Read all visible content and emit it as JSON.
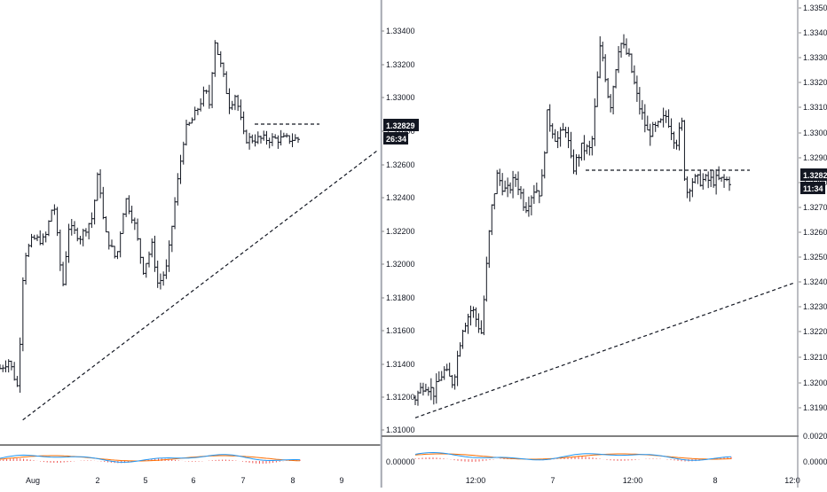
{
  "chart_data": [
    {
      "type": "ohlc",
      "title": "",
      "price_axis": {
        "ylim": [
          1.3085,
          1.3448
        ],
        "ticks": [
          "1.31000",
          "1.31200",
          "1.31400",
          "1.31600",
          "1.31800",
          "1.32000",
          "1.32200",
          "1.32400",
          "1.32600",
          "1.32800",
          "1.33000",
          "1.33200",
          "1.33400"
        ]
      },
      "time_axis": {
        "labels": [
          "Aug",
          "2",
          "5",
          "6",
          "7",
          "8",
          "9"
        ]
      },
      "last_price": "1.32829",
      "countdown": "26:34",
      "series": [
        {
          "name": "",
          "close_path": [
            [
              0.0,
              1.3137
            ],
            [
              0.03,
              1.3142
            ],
            [
              0.06,
              1.3125
            ],
            [
              0.08,
              1.3204
            ],
            [
              0.11,
              1.3215
            ],
            [
              0.15,
              1.3214
            ],
            [
              0.18,
              1.3238
            ],
            [
              0.21,
              1.3185
            ],
            [
              0.23,
              1.3222
            ],
            [
              0.27,
              1.3216
            ],
            [
              0.31,
              1.3228
            ],
            [
              0.33,
              1.3256
            ],
            [
              0.35,
              1.322
            ],
            [
              0.39,
              1.3202
            ],
            [
              0.42,
              1.324
            ],
            [
              0.45,
              1.3225
            ],
            [
              0.48,
              1.3196
            ],
            [
              0.51,
              1.3211
            ],
            [
              0.53,
              1.3187
            ],
            [
              0.56,
              1.3198
            ],
            [
              0.59,
              1.3242
            ],
            [
              0.62,
              1.328
            ],
            [
              0.64,
              1.3285
            ],
            [
              0.66,
              1.3292
            ],
            [
              0.69,
              1.3305
            ],
            [
              0.7,
              1.3292
            ],
            [
              0.72,
              1.3335
            ],
            [
              0.75,
              1.3312
            ],
            [
              0.77,
              1.3295
            ],
            [
              0.79,
              1.3302
            ],
            [
              0.82,
              1.3275
            ]
          ]
        }
      ],
      "levels": [
        {
          "value": 1.32829
        }
      ],
      "trendline": [
        [
          0.06,
          1.3106
        ],
        [
          1.0,
          1.3268
        ]
      ]
    },
    {
      "type": "ohlc",
      "title": "",
      "price_axis": {
        "ylim": [
          1.318,
          1.3505
        ],
        "ticks": [
          "1.31900",
          "1.32000",
          "1.32100",
          "1.32200",
          "1.32300",
          "1.32400",
          "1.32500",
          "1.32600",
          "1.32700",
          "1.32800",
          "1.32900",
          "1.33000",
          "1.33100",
          "1.33200",
          "1.33300",
          "1.33400",
          "1.33500"
        ]
      },
      "time_axis": {
        "labels": [
          "12:00",
          "7",
          "12:00",
          "8",
          "12:0"
        ]
      },
      "last_price": "1.32828",
      "countdown": "11:34",
      "series": [
        {
          "name": "",
          "close_path": [
            [
              0.0,
              1.3194
            ],
            [
              0.03,
              1.32
            ],
            [
              0.06,
              1.3196
            ],
            [
              0.09,
              1.3205
            ],
            [
              0.12,
              1.32
            ],
            [
              0.15,
              1.3222
            ],
            [
              0.18,
              1.323
            ],
            [
              0.21,
              1.322
            ],
            [
              0.24,
              1.3267
            ],
            [
              0.26,
              1.3283
            ],
            [
              0.29,
              1.3276
            ],
            [
              0.32,
              1.3282
            ],
            [
              0.35,
              1.327
            ],
            [
              0.38,
              1.3278
            ],
            [
              0.4,
              1.3276
            ],
            [
              0.42,
              1.3307
            ],
            [
              0.45,
              1.3297
            ],
            [
              0.48,
              1.3302
            ],
            [
              0.5,
              1.3285
            ],
            [
              0.53,
              1.3294
            ],
            [
              0.56,
              1.3293
            ],
            [
              0.59,
              1.3336
            ],
            [
              0.62,
              1.331
            ],
            [
              0.65,
              1.3337
            ],
            [
              0.68,
              1.333
            ],
            [
              0.71,
              1.3312
            ],
            [
              0.74,
              1.33
            ],
            [
              0.77,
              1.3302
            ],
            [
              0.8,
              1.3307
            ],
            [
              0.83,
              1.3296
            ],
            [
              0.85,
              1.3304
            ],
            [
              0.86,
              1.3275
            ],
            [
              0.88,
              1.3281
            ]
          ]
        }
      ],
      "levels": [
        {
          "value": 1.32828
        }
      ],
      "trendline": [
        [
          0.0,
          1.3186
        ],
        [
          1.0,
          1.324
        ]
      ]
    }
  ],
  "indicator_axes": [
    {
      "label": "0.00000"
    },
    {
      "label": "0.00000",
      "top_label": "0.00200"
    }
  ],
  "colors": {
    "bar": "#131722",
    "axis_text": "#131722",
    "label_bg": "#131722",
    "label_text": "#ffffff",
    "macd_line": "#2196f3",
    "signal_line": "#ff6d00",
    "hist": "#ef5350",
    "separator": "#000000"
  }
}
